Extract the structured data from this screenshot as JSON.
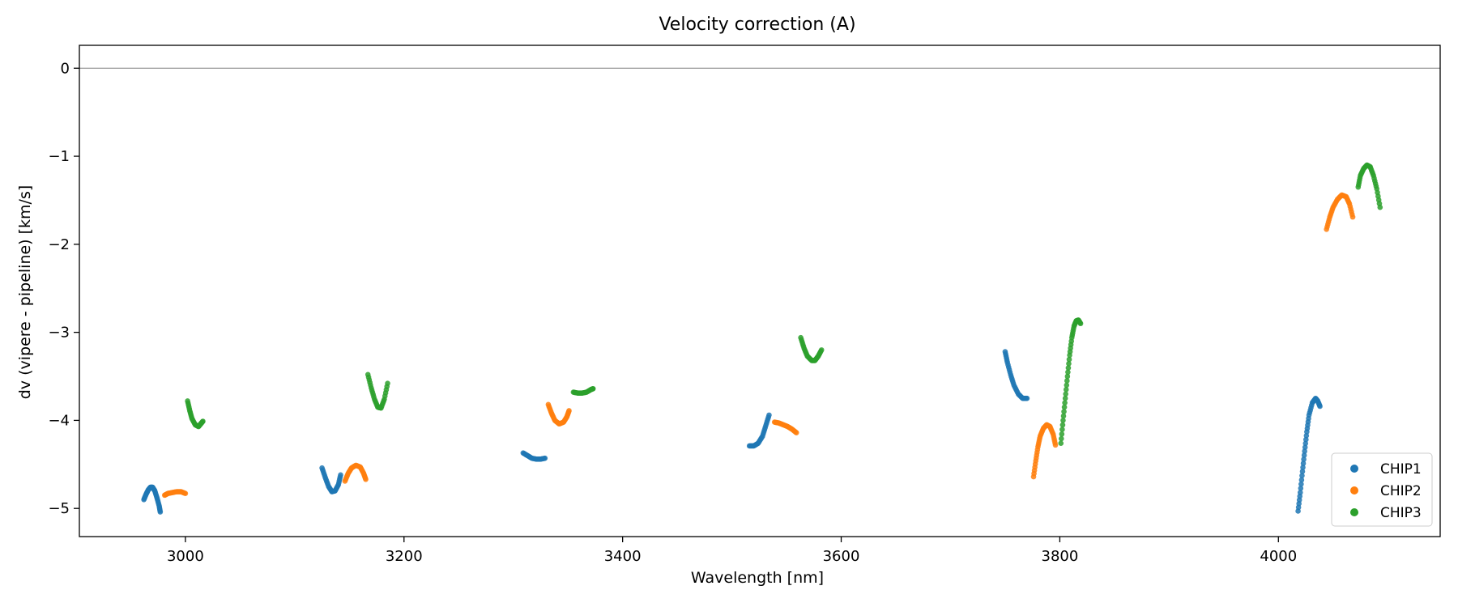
{
  "chart_data": {
    "type": "scatter",
    "title": "Velocity correction (A)",
    "xlabel": "Wavelength [nm]",
    "ylabel": "dv (vipere - pipeline) [km/s]",
    "xlim": [
      2903,
      4148
    ],
    "ylim": [
      -5.32,
      0.26
    ],
    "xticks": [
      3000,
      3200,
      3400,
      3600,
      3800,
      4000
    ],
    "yticks": [
      0,
      -1,
      -2,
      -3,
      -4,
      -5
    ],
    "reference_line_y": 0,
    "grid": false,
    "legend_position": "lower-right",
    "series": [
      {
        "name": "CHIP1",
        "color": "#1f77b4",
        "segments": [
          [
            [
              2962,
              -4.9
            ],
            [
              2964,
              -4.84
            ],
            [
              2966,
              -4.79
            ],
            [
              2968,
              -4.76
            ],
            [
              2970,
              -4.76
            ],
            [
              2972,
              -4.8
            ],
            [
              2974,
              -4.88
            ],
            [
              2976,
              -4.97
            ],
            [
              2977,
              -5.04
            ]
          ],
          [
            [
              3125,
              -4.54
            ],
            [
              3128,
              -4.65
            ],
            [
              3131,
              -4.75
            ],
            [
              3134,
              -4.81
            ],
            [
              3137,
              -4.8
            ],
            [
              3140,
              -4.73
            ],
            [
              3142,
              -4.62
            ]
          ],
          [
            [
              3309,
              -4.37
            ],
            [
              3313,
              -4.4
            ],
            [
              3317,
              -4.43
            ],
            [
              3321,
              -4.44
            ],
            [
              3325,
              -4.44
            ],
            [
              3329,
              -4.43
            ]
          ],
          [
            [
              3516,
              -4.29
            ],
            [
              3520,
              -4.29
            ],
            [
              3524,
              -4.26
            ],
            [
              3528,
              -4.18
            ],
            [
              3531,
              -4.06
            ],
            [
              3534,
              -3.94
            ]
          ],
          [
            [
              3750,
              -3.22
            ],
            [
              3752,
              -3.34
            ],
            [
              3755,
              -3.48
            ],
            [
              3758,
              -3.6
            ],
            [
              3762,
              -3.7
            ],
            [
              3766,
              -3.75
            ],
            [
              3770,
              -3.75
            ]
          ],
          [
            [
              4018,
              -5.03
            ],
            [
              4020,
              -4.82
            ],
            [
              4022,
              -4.58
            ],
            [
              4024,
              -4.35
            ],
            [
              4026,
              -4.13
            ],
            [
              4028,
              -3.94
            ],
            [
              4031,
              -3.8
            ],
            [
              4034,
              -3.75
            ],
            [
              4036,
              -3.78
            ],
            [
              4038,
              -3.84
            ]
          ]
        ]
      },
      {
        "name": "CHIP2",
        "color": "#ff7f0e",
        "segments": [
          [
            [
              2981,
              -4.85
            ],
            [
              2984,
              -4.83
            ],
            [
              2988,
              -4.82
            ],
            [
              2992,
              -4.81
            ],
            [
              2996,
              -4.81
            ],
            [
              3000,
              -4.83
            ]
          ],
          [
            [
              3146,
              -4.69
            ],
            [
              3149,
              -4.6
            ],
            [
              3152,
              -4.54
            ],
            [
              3156,
              -4.51
            ],
            [
              3160,
              -4.53
            ],
            [
              3163,
              -4.6
            ],
            [
              3165,
              -4.67
            ]
          ],
          [
            [
              3332,
              -3.82
            ],
            [
              3335,
              -3.92
            ],
            [
              3338,
              -4.0
            ],
            [
              3342,
              -4.04
            ],
            [
              3346,
              -4.02
            ],
            [
              3349,
              -3.96
            ],
            [
              3351,
              -3.89
            ]
          ],
          [
            [
              3539,
              -4.02
            ],
            [
              3543,
              -4.03
            ],
            [
              3547,
              -4.05
            ],
            [
              3551,
              -4.07
            ],
            [
              3555,
              -4.1
            ],
            [
              3559,
              -4.14
            ]
          ],
          [
            [
              3776,
              -4.64
            ],
            [
              3778,
              -4.46
            ],
            [
              3780,
              -4.3
            ],
            [
              3782,
              -4.18
            ],
            [
              3785,
              -4.09
            ],
            [
              3788,
              -4.05
            ],
            [
              3791,
              -4.07
            ],
            [
              3794,
              -4.16
            ],
            [
              3796,
              -4.28
            ]
          ],
          [
            [
              4044,
              -1.83
            ],
            [
              4047,
              -1.69
            ],
            [
              4050,
              -1.58
            ],
            [
              4054,
              -1.49
            ],
            [
              4058,
              -1.44
            ],
            [
              4062,
              -1.46
            ],
            [
              4065,
              -1.54
            ],
            [
              4068,
              -1.69
            ]
          ]
        ]
      },
      {
        "name": "CHIP3",
        "color": "#2ca02c",
        "segments": [
          [
            [
              3002,
              -3.78
            ],
            [
              3004,
              -3.89
            ],
            [
              3006,
              -3.98
            ],
            [
              3009,
              -4.05
            ],
            [
              3012,
              -4.07
            ],
            [
              3014,
              -4.04
            ],
            [
              3016,
              -4.01
            ]
          ],
          [
            [
              3167,
              -3.48
            ],
            [
              3170,
              -3.63
            ],
            [
              3173,
              -3.76
            ],
            [
              3176,
              -3.85
            ],
            [
              3179,
              -3.86
            ],
            [
              3182,
              -3.76
            ],
            [
              3185,
              -3.58
            ]
          ],
          [
            [
              3355,
              -3.68
            ],
            [
              3359,
              -3.69
            ],
            [
              3363,
              -3.69
            ],
            [
              3367,
              -3.68
            ],
            [
              3371,
              -3.65
            ],
            [
              3373,
              -3.64
            ]
          ],
          [
            [
              3563,
              -3.06
            ],
            [
              3566,
              -3.18
            ],
            [
              3569,
              -3.27
            ],
            [
              3573,
              -3.32
            ],
            [
              3576,
              -3.32
            ],
            [
              3579,
              -3.27
            ],
            [
              3582,
              -3.2
            ]
          ],
          [
            [
              3801,
              -4.26
            ],
            [
              3803,
              -4.0
            ],
            [
              3805,
              -3.75
            ],
            [
              3807,
              -3.5
            ],
            [
              3809,
              -3.26
            ],
            [
              3811,
              -3.06
            ],
            [
              3813,
              -2.93
            ],
            [
              3815,
              -2.87
            ],
            [
              3817,
              -2.86
            ],
            [
              3819,
              -2.9
            ]
          ],
          [
            [
              4073,
              -1.35
            ],
            [
              4075,
              -1.22
            ],
            [
              4078,
              -1.14
            ],
            [
              4081,
              -1.1
            ],
            [
              4084,
              -1.12
            ],
            [
              4087,
              -1.22
            ],
            [
              4090,
              -1.37
            ],
            [
              4093,
              -1.58
            ]
          ]
        ]
      }
    ]
  }
}
